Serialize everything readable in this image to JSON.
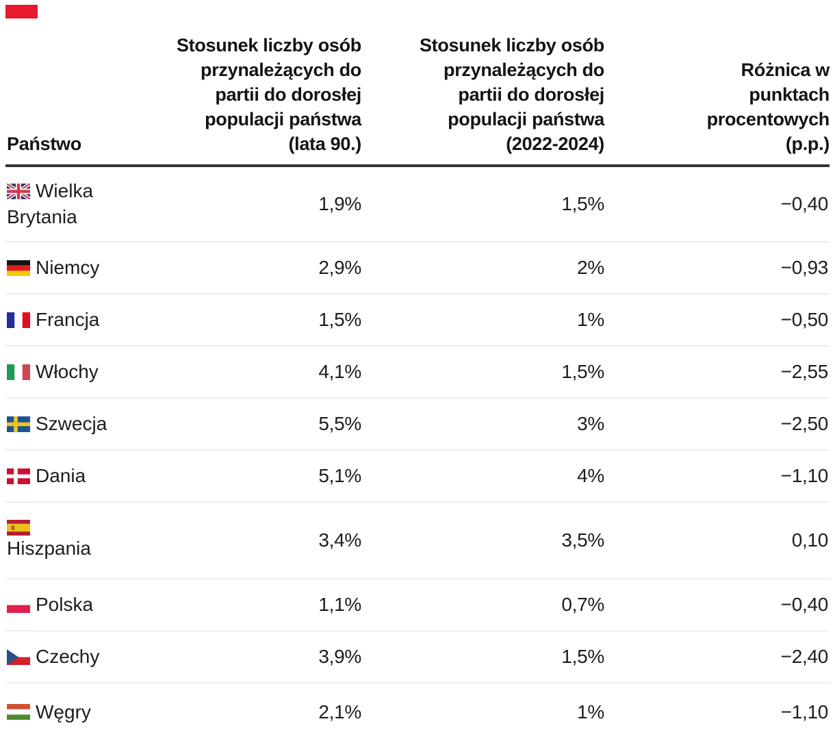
{
  "brand": {
    "mark_color": "#e8192c"
  },
  "header": {
    "country": "Państwo",
    "col_90s_lines": [
      "Stosunek liczby osób",
      "przynależących do",
      "partii do dorosłej",
      "populacji państwa",
      "(lata 90.)"
    ],
    "col_2022_lines": [
      "Stosunek liczby osób",
      "przynależących do",
      "partii do dorosłej",
      "populacji państwa",
      "(2022-2024)"
    ],
    "col_diff_lines": [
      "Różnica w",
      "punktach",
      "procentowych",
      "(p.p.)"
    ]
  },
  "rows": [
    {
      "country": "Wielka Brytania",
      "name_lines": [
        "Wielka",
        "Brytania"
      ],
      "flag": "gb",
      "v_90s": "1,9%",
      "v_2022": "1,5%",
      "diff": "−0,40"
    },
    {
      "country": "Niemcy",
      "name_lines": [
        "Niemcy"
      ],
      "flag": "de",
      "v_90s": "2,9%",
      "v_2022": "2%",
      "diff": "−0,93"
    },
    {
      "country": "Francja",
      "name_lines": [
        "Francja"
      ],
      "flag": "fr",
      "v_90s": "1,5%",
      "v_2022": "1%",
      "diff": "−0,50"
    },
    {
      "country": "Włochy",
      "name_lines": [
        "Włochy"
      ],
      "flag": "it",
      "v_90s": "4,1%",
      "v_2022": "1,5%",
      "diff": "−2,55"
    },
    {
      "country": "Szwecja",
      "name_lines": [
        "Szwecja"
      ],
      "flag": "se",
      "v_90s": "5,5%",
      "v_2022": "3%",
      "diff": "−2,50"
    },
    {
      "country": "Dania",
      "name_lines": [
        "Dania"
      ],
      "flag": "dk",
      "v_90s": "5,1%",
      "v_2022": "4%",
      "diff": "−1,10"
    },
    {
      "country": "Hiszpania",
      "name_lines": [
        "Hiszpania"
      ],
      "flag": "es",
      "flag_own_line": true,
      "v_90s": "3,4%",
      "v_2022": "3,5%",
      "diff": "0,10"
    },
    {
      "country": "Polska",
      "name_lines": [
        "Polska"
      ],
      "flag": "pl",
      "v_90s": "1,1%",
      "v_2022": "0,7%",
      "diff": "−0,40"
    },
    {
      "country": "Czechy",
      "name_lines": [
        "Czechy"
      ],
      "flag": "cz",
      "v_90s": "3,9%",
      "v_2022": "1,5%",
      "diff": "−2,40"
    },
    {
      "country": "Węgry",
      "name_lines": [
        "Węgry"
      ],
      "flag": "hu",
      "v_90s": "2,1%",
      "v_2022": "1%",
      "diff": "−1,10"
    }
  ],
  "flag_colors": {
    "gb": {
      "field": "#223467",
      "cross": "#cf3a52",
      "white": "#ffffff"
    },
    "de": {
      "top": "#141414",
      "mid": "#e31d1d",
      "bottom": "#f7cb00"
    },
    "fr": {
      "left": "#232d9c",
      "mid": "#ffffff",
      "right": "#e20f1f"
    },
    "it": {
      "left": "#1d9b57",
      "mid": "#ffffff",
      "right": "#cc4655"
    },
    "se": {
      "field": "#1d5493",
      "cross": "#efc41f"
    },
    "dk": {
      "field": "#cd1135",
      "cross": "#ffffff"
    },
    "es": {
      "band": "#b41f33",
      "mid": "#eec01e",
      "emblem": "#a85f2a"
    },
    "pl": {
      "top": "#ffffff",
      "bottom": "#e2204e"
    },
    "cz": {
      "top": "#ffffff",
      "bottom": "#d42029",
      "triangle": "#2a4f86"
    },
    "hu": {
      "top": "#d1512d",
      "mid": "#ffffff",
      "bottom": "#4f8a2e"
    }
  },
  "chart_data": {
    "type": "table",
    "columns": [
      "Państwo",
      "Stosunek liczby osób przynależących do partii do dorosłej populacji państwa (lata 90.)",
      "Stosunek liczby osób przynależących do partii do dorosłej populacji państwa (2022-2024)",
      "Różnica w punktach procentowych (p.p.)"
    ],
    "rows": [
      [
        "Wielka Brytania",
        "1,9%",
        "1,5%",
        "−0,40"
      ],
      [
        "Niemcy",
        "2,9%",
        "2%",
        "−0,93"
      ],
      [
        "Francja",
        "1,5%",
        "1%",
        "−0,50"
      ],
      [
        "Włochy",
        "4,1%",
        "1,5%",
        "−2,55"
      ],
      [
        "Szwecja",
        "5,5%",
        "3%",
        "−2,50"
      ],
      [
        "Dania",
        "5,1%",
        "4%",
        "−1,10"
      ],
      [
        "Hiszpania",
        "3,4%",
        "3,5%",
        "0,10"
      ],
      [
        "Polska",
        "1,1%",
        "0,7%",
        "−0,40"
      ],
      [
        "Czechy",
        "3,9%",
        "1,5%",
        "−2,40"
      ],
      [
        "Węgry",
        "2,1%",
        "1%",
        "−1,10"
      ]
    ],
    "values_90s_pct": [
      1.9,
      2.9,
      1.5,
      4.1,
      5.5,
      5.1,
      3.4,
      1.1,
      3.9,
      2.1
    ],
    "values_2022_2024_pct": [
      1.5,
      2.0,
      1.0,
      1.5,
      3.0,
      4.0,
      3.5,
      0.7,
      1.5,
      1.0
    ],
    "diff_pp": [
      -0.4,
      -0.93,
      -0.5,
      -2.55,
      -2.5,
      -1.1,
      0.1,
      -0.4,
      -2.4,
      -1.1
    ]
  }
}
